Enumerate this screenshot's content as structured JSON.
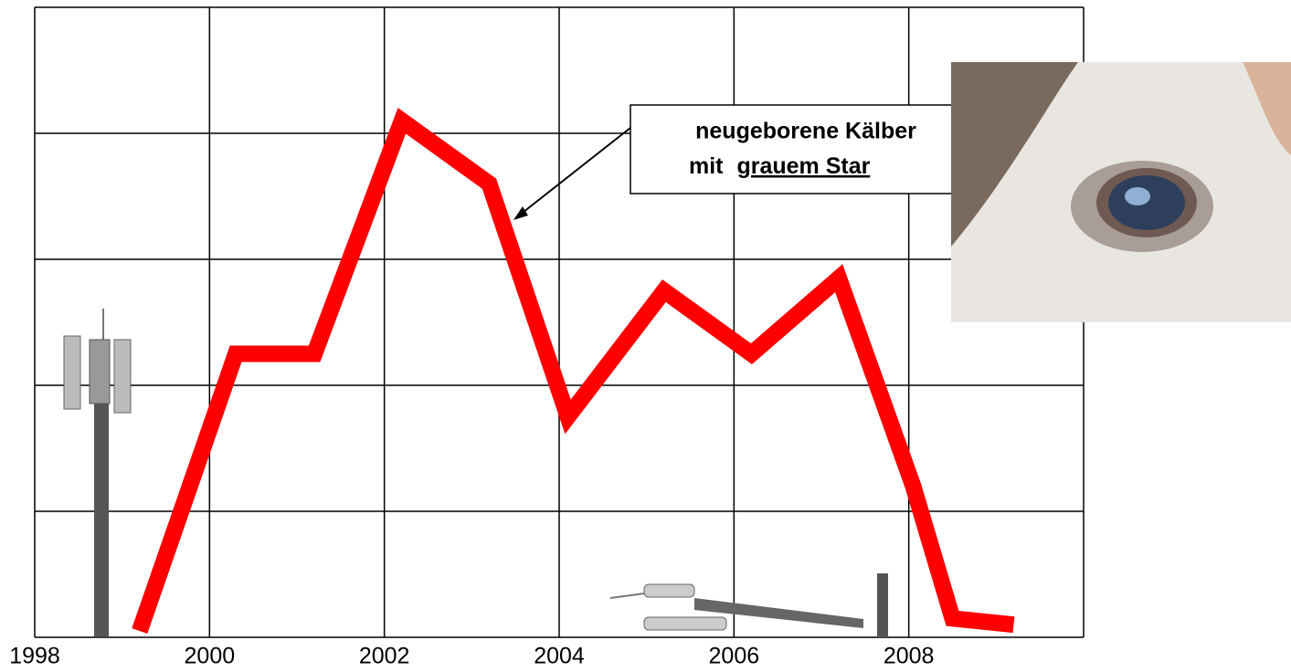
{
  "chart_data": {
    "type": "line",
    "x": [
      1999.2,
      2000.3,
      2001.2,
      2002.2,
      2003.2,
      2004.1,
      2005.2,
      2006.2,
      2007.2,
      2008.05,
      2008.5,
      2009.2
    ],
    "series": [
      {
        "color": "#ff0000",
        "values": [
          0.05,
          2.25,
          2.25,
          4.1,
          3.6,
          1.75,
          2.75,
          2.25,
          2.85,
          1.2,
          0.15,
          0.1
        ]
      }
    ],
    "xlim": [
      1998,
      2010
    ],
    "xticks": [
      1998,
      2000,
      2002,
      2004,
      2006,
      2008
    ],
    "ylim": [
      0,
      5
    ],
    "yticks": [
      0,
      1,
      2,
      3,
      4,
      5
    ],
    "grid": true,
    "annotation": {
      "line1": "neugeborene Kälber",
      "line2_plain": "mit",
      "line2_underlined": "grauem Star"
    }
  }
}
